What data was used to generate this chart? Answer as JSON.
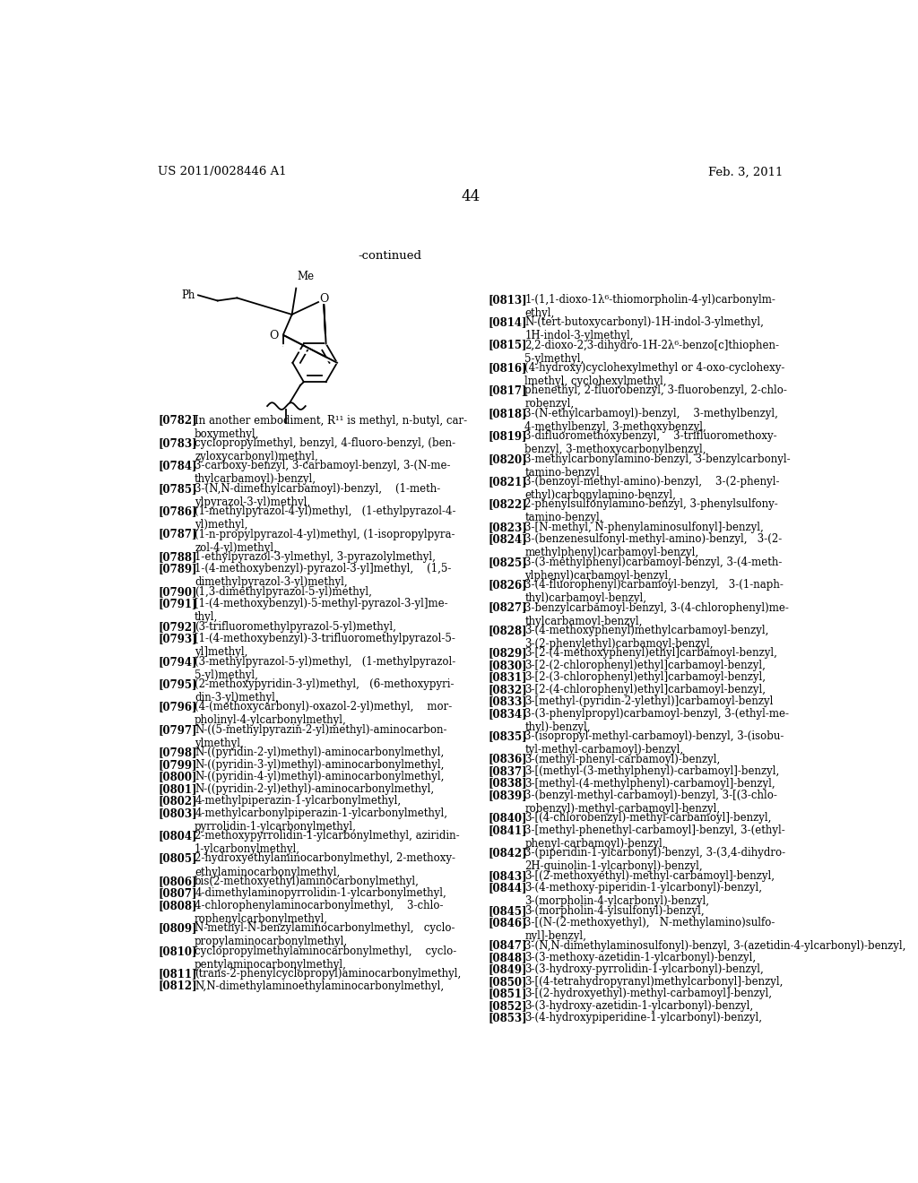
{
  "header_left": "US 2011/0028446 A1",
  "header_right": "Feb. 3, 2011",
  "page_number": "44",
  "continued_label": "-continued",
  "background_color": "#ffffff",
  "text_color": "#000000",
  "left_column_text": [
    [
      "[0782]",
      "In another embodiment, R¹¹ is methyl, n-butyl, car-\nboxymethyl,"
    ],
    [
      "[0783]",
      "cyclopropylmethyl, benzyl, 4-fluoro-benzyl, (ben-\nzyloxycarbonyl)methyl,"
    ],
    [
      "[0784]",
      "3-carboxy-benzyl, 3-carbamoyl-benzyl, 3-(N-me-\nthylcarbamoyl)-benzyl,"
    ],
    [
      "[0785]",
      "3-(N,N-dimethylcarbamoyl)-benzyl,    (1-meth-\nylpyrazol-3-yl)methyl,"
    ],
    [
      "[0786]",
      "(1-methylpyrazol-4-yl)methyl,   (1-ethylpyrazol-4-\nyl)methyl,"
    ],
    [
      "[0787]",
      "(1-n-propylpyrazol-4-yl)methyl, (1-isopropylpyra-\nzol-4-yl)methyl,"
    ],
    [
      "[0788]",
      "1-ethylpyrazol-3-ylmethyl, 3-pyrazolylmethyl,"
    ],
    [
      "[0789]",
      "1-(4-methoxybenzyl)-pyrazol-3-yl]methyl,    (1,5-\ndimethylpyrazol-3-yl)methyl,"
    ],
    [
      "[0790]",
      "(1,3-dimethylpyrazol-5-yl)methyl,"
    ],
    [
      "[0791]",
      "[1-(4-methoxybenzyl)-5-methyl-pyrazol-3-yl]me-\nthyl,"
    ],
    [
      "[0792]",
      "(3-trifluoromethylpyrazol-5-yl)methyl,"
    ],
    [
      "[0793]",
      "[1-(4-methoxybenzyl)-3-trifluoromethylpyrazol-5-\nyl]methyl,"
    ],
    [
      "[0794]",
      "(3-methylpyrazol-5-yl)methyl,   (1-methylpyrazol-\n5-yl)methyl,"
    ],
    [
      "[0795]",
      "(2-methoxypyridin-3-yl)methyl,   (6-methoxypyri-\ndin-3-yl)methyl,"
    ],
    [
      "[0796]",
      "(4-(methoxycarbonyl)-oxazol-2-yl)methyl,    mor-\npholinyl-4-ylcarbonylmethyl,"
    ],
    [
      "[0797]",
      "N-((5-methylpyrazin-2-yl)methyl)-aminocarbon-\nylmethyl,"
    ],
    [
      "[0798]",
      "N-((pyridin-2-yl)methyl)-aminocarbonylmethyl,"
    ],
    [
      "[0799]",
      "N-((pyridin-3-yl)methyl)-aminocarbonylmethyl,"
    ],
    [
      "[0800]",
      "N-((pyridin-4-yl)methyl)-aminocarbonylmethyl,"
    ],
    [
      "[0801]",
      "N-((pyridin-2-yl)ethyl)-aminocarbonylmethyl,"
    ],
    [
      "[0802]",
      "4-methylpiperazin-1-ylcarbonylmethyl,"
    ],
    [
      "[0803]",
      "4-methylcarbonylpiperazin-1-ylcarbonylmethyl,\npyrrolidin-1-ylcarbonylmethyl,"
    ],
    [
      "[0804]",
      "2-methoxypyrrolidin-1-ylcarbonylmethyl, aziridin-\n1-ylcarbonylmethyl,"
    ],
    [
      "[0805]",
      "2-hydroxyethylaminocarbonylmethyl, 2-methoxy-\nethylaminocarbonylmethyl,"
    ],
    [
      "[0806]",
      "bis(2-methoxyethyl)aminocarbonylmethyl,"
    ],
    [
      "[0807]",
      "4-dimethylaminopyrrolidin-1-ylcarbonylmethyl,"
    ],
    [
      "[0808]",
      "4-chlorophenylaminocarbonylmethyl,    3-chlo-\nrophenylcarbonylmethyl,"
    ],
    [
      "[0809]",
      "N-methyl-N-benzylaminocarbonylmethyl,   cyclo-\npropylaminocarbonylmethyl,"
    ],
    [
      "[0810]",
      "cyclopropylmethylaminocarbonylmethyl,    cyclo-\npentylaminocarbonylmethyl,"
    ],
    [
      "[0811]",
      "(trans-2-phenylcyclopropyl)aminocarbonylmethyl,"
    ],
    [
      "[0812]",
      "N,N-dimethylaminoethylaminocarbonylmethyl,"
    ]
  ],
  "right_column_text": [
    [
      "[0813]",
      "1-(1,1-dioxo-1λ⁶-thiomorpholin-4-yl)carbonylm-\nethyl,"
    ],
    [
      "[0814]",
      "N-(tert-butoxycarbonyl)-1H-indol-3-ylmethyl,\n1H-indol-3-ylmethyl,"
    ],
    [
      "[0815]",
      "2,2-dioxo-2,3-dihydro-1H-2λ⁶-benzo[c]thiophen-\n5-ylmethyl,"
    ],
    [
      "[0816]",
      "(4-hydroxy)cyclohexylmethyl or 4-oxo-cyclohexy-\nlmethyl, cyclohexylmethyl,"
    ],
    [
      "[0817]",
      "phenethyl, 2-fluorobenzyl, 3-fluorobenzyl, 2-chlo-\nrobenzyl,"
    ],
    [
      "[0818]",
      "3-(N-ethylcarbamoyl)-benzyl,    3-methylbenzyl,\n4-methylbenzyl, 3-methoxybenzyl,"
    ],
    [
      "[0819]",
      "3-difluoromethoxybenzyl,    3-trifluoromethoxy-\nbenzyl, 3-methoxycarbonylbenzyl,"
    ],
    [
      "[0820]",
      "3-methylcarbonylamino-benzyl, 3-benzylcarbonyl-\ntamino-benzyl,"
    ],
    [
      "[0821]",
      "3-(benzoyl-methyl-amino)-benzyl,    3-(2-phenyl-\nethyl)carbonylamino-benzyl,"
    ],
    [
      "[0822]",
      "2-phenylsulfonylamino-benzyl, 3-phenylsulfony-\ntamino-benzyl,"
    ],
    [
      "[0823]",
      "3-[N-methyl, N-phenylaminosulfonyl]-benzyl,"
    ],
    [
      "[0824]",
      "3-(benzenesulfonyl-methyl-amino)-benzyl,   3-(2-\nmethylphenyl)carbamoyl-benzyl,"
    ],
    [
      "[0825]",
      "3-(3-methylphenyl)carbamoyl-benzyl, 3-(4-meth-\nylphenyl)carbamoyl-benzyl,"
    ],
    [
      "[0826]",
      "3-(4-fluorophenyl)carbamoyl-benzyl,   3-(1-naph-\nthyl)carbamoyl-benzyl,"
    ],
    [
      "[0827]",
      "3-benzylcarbamoyl-benzyl, 3-(4-chlorophenyl)me-\nthylcarbamoyl-benzyl,"
    ],
    [
      "[0828]",
      "3-(4-methoxyphenyl)methylcarbamoyl-benzyl,\n3-(2-phenylethyl)carbamoyl-benzyl,"
    ],
    [
      "[0829]",
      "3-[2-(4-methoxyphenyl)ethyl]carbamoyl-benzyl,"
    ],
    [
      "[0830]",
      "3-[2-(2-chlorophenyl)ethyl]carbamoyl-benzyl,"
    ],
    [
      "[0831]",
      "3-[2-(3-chlorophenyl)ethyl]carbamoyl-benzyl,"
    ],
    [
      "[0832]",
      "3-[2-(4-chlorophenyl)ethyl]carbamoyl-benzyl,"
    ],
    [
      "[0833]",
      "3-[methyl-(pyridin-2-ylethyl)]carbamoyl-benzyl"
    ],
    [
      "[0834]",
      "3-(3-phenylpropyl)carbamoyl-benzyl, 3-(ethyl-me-\nthyl)-benzyl,"
    ],
    [
      "[0835]",
      "3-(isopropyl-methyl-carbamoyl)-benzyl, 3-(isobu-\ntyl-methyl-carbamoyl)-benzyl,"
    ],
    [
      "[0836]",
      "3-(methyl-phenyl-carbamoyl)-benzyl,"
    ],
    [
      "[0837]",
      "3-[(methyl-(3-methylphenyl)-carbamoyl]-benzyl,"
    ],
    [
      "[0838]",
      "3-[methyl-(4-methylphenyl)-carbamoyl]-benzyl,"
    ],
    [
      "[0839]",
      "3-(benzyl-methyl-carbamoyl)-benzyl, 3-[(3-chlo-\nrobenzyl)-methyl-carbamoyl]-benzyl,"
    ],
    [
      "[0840]",
      "3-[(4-chlorobenzyl)-methyl-carbamoyl]-benzyl,"
    ],
    [
      "[0841]",
      "3-[methyl-phenethyl-carbamoyl]-benzyl, 3-(ethyl-\nphenyl-carbamoyl)-benzyl,"
    ],
    [
      "[0842]",
      "3-(piperidin-1-ylcarbonyl)-benzyl, 3-(3,4-dihydro-\n2H-quinolin-1-ylcarbonyl)-benzyl,"
    ],
    [
      "[0843]",
      "3-[(2-methoxyethyl)-methyl-carbamoyl]-benzyl,"
    ],
    [
      "[0844]",
      "3-(4-methoxy-piperidin-1-ylcarbonyl)-benzyl,\n3-(morpholin-4-ylcarbonyl)-benzyl,"
    ],
    [
      "[0845]",
      "3-(morpholin-4-ylsulfonyl)-benzyl,"
    ],
    [
      "[0846]",
      "3-[(N-(2-methoxyethyl),   N-methylamino)sulfo-\nnyl]-benzyl,"
    ],
    [
      "[0847]",
      "3-(N,N-dimethylaminosulfonyl)-benzyl, 3-(azetidin-4-ylcarbonyl)-benzyl,"
    ],
    [
      "[0848]",
      "3-(3-methoxy-azetidin-1-ylcarbonyl)-benzyl,"
    ],
    [
      "[0849]",
      "3-(3-hydroxy-pyrrolidin-1-ylcarbonyl)-benzyl,"
    ],
    [
      "[0850]",
      "3-[(4-tetrahydropyranyl)methylcarbonyl]-benzyl,"
    ],
    [
      "[0851]",
      "3-[(2-hydroxyethyl)-methyl-carbamoyl]-benzyl,"
    ],
    [
      "[0852]",
      "3-(3-hydroxy-azetidin-1-ylcarbonyl)-benzyl,"
    ],
    [
      "[0853]",
      "3-(4-hydroxypiperidine-1-ylcarbonyl)-benzyl,"
    ]
  ]
}
